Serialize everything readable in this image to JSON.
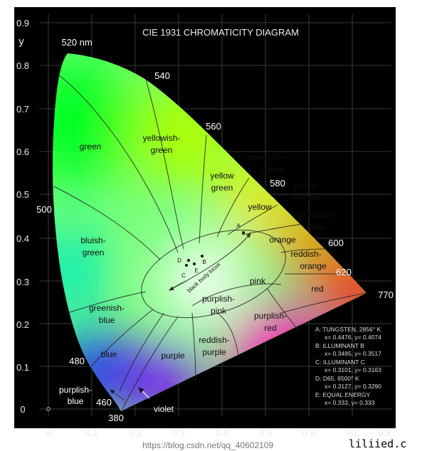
{
  "title": "CIE 1931 CHROMATICITY DIAGRAM",
  "y_axis_label": "y",
  "x_ticks": [
    "0",
    "0.1",
    "0.2",
    "0.3",
    "0.4",
    "0.5",
    "0.6",
    "0.7",
    "0.8"
  ],
  "y_ticks": [
    "0",
    "0.1",
    "0.2",
    "0.3",
    "0.4",
    "0.5",
    "0.6",
    "0.7",
    "0.8",
    "0.9"
  ],
  "wavelengths": {
    "w520": "520 nm",
    "w540": "540",
    "w560": "560",
    "w580": "580",
    "w600": "600",
    "w620": "620",
    "w770": "770",
    "w500": "500",
    "w480": "480",
    "w460": "460",
    "w380": "380"
  },
  "regions": {
    "green": "green",
    "yellowish_green_1": "yellowish-",
    "yellowish_green_2": "green",
    "yellow_green_1": "yellow",
    "yellow_green_2": "green",
    "greenish_yellow_1": "greenish-",
    "greenish_yellow_2": "yellow",
    "yellow_orange_1": "yellow",
    "yellow_orange_2": "orange",
    "yellow": "yellow",
    "yellowish_pink_1": "yellowish-",
    "yellowish_pink_2": "pink",
    "orange": "orange",
    "reddish_orange_1": "reddish-",
    "reddish_orange_2": "orange",
    "pink": "pink",
    "red": "red",
    "bluish_green_1": "bluish-",
    "bluish_green_2": "green",
    "greenish_blue_1": "greenish-",
    "greenish_blue_2": "blue",
    "blue": "blue",
    "purple": "purple",
    "reddish_purple_1": "reddish-",
    "reddish_purple_2": "purple",
    "purplish_pink_1": "purplish-",
    "purplish_pink_2": "pink",
    "purplish_red_1": "purplish-",
    "purplish_red_2": "red",
    "purplish_blue_1": "purplish-",
    "purplish_blue_2": "blue",
    "violet": "violet",
    "black_body_locus": "black body locus"
  },
  "points": {
    "A": "A",
    "B": "B",
    "C": "C",
    "D": "D",
    "E": "E"
  },
  "legend": [
    "A: TUNGSTEN, 2856° K",
    "x= 0.4476, y= 0.4074",
    "B: ILLUMINANT B",
    "x= 0.3485, y= 0.3517",
    "C: ILLUMINANT C",
    "x= 0.3101, y= 0.3163",
    "D: D65, 6500° K",
    "x= 0.3127, y= 0.3290",
    "E: EQUAL ENERGY",
    "x= 0.333, y= 0.333"
  ],
  "watermark_url": "https://blog.csdn.net/qq_40602109",
  "watermark_site": "liliied.c"
}
